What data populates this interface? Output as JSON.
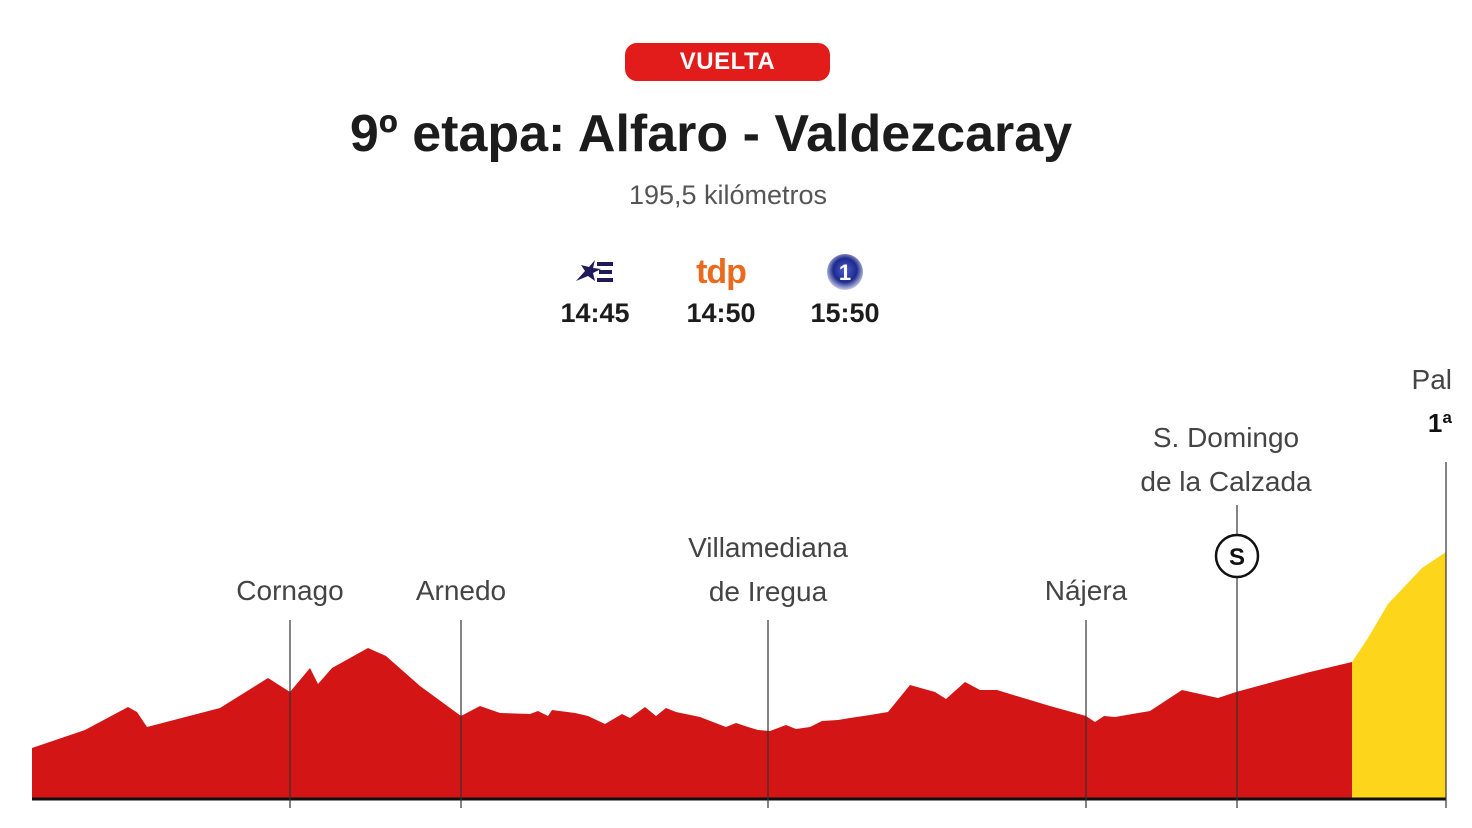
{
  "header": {
    "badge": "VUELTA",
    "title": "9º etapa: Alfaro - Valdezcaray",
    "distance": "195,5 kilómetros"
  },
  "broadcasters": [
    {
      "logo_icon": "eurosport-icon",
      "time": "14:45"
    },
    {
      "logo_icon": "tdp-icon",
      "logo_text": "tdp",
      "time": "14:50"
    },
    {
      "logo_icon": "la1-icon",
      "logo_text": "1",
      "time": "15:50"
    }
  ],
  "profile": {
    "colors": {
      "stage": "#d31515",
      "final_climb": "#fdd51b",
      "accent": "#e21b1b"
    },
    "places": [
      {
        "lines": [
          "Cornago"
        ]
      },
      {
        "lines": [
          "Arnedo"
        ]
      },
      {
        "lines": [
          "Villamediana",
          "de Iregua"
        ]
      },
      {
        "lines": [
          "Nájera"
        ]
      },
      {
        "lines": [
          "S. Domingo",
          "de la Calzada"
        ],
        "marker": "S"
      },
      {
        "lines": [
          "Pal"
        ],
        "category": "1ª"
      }
    ]
  }
}
